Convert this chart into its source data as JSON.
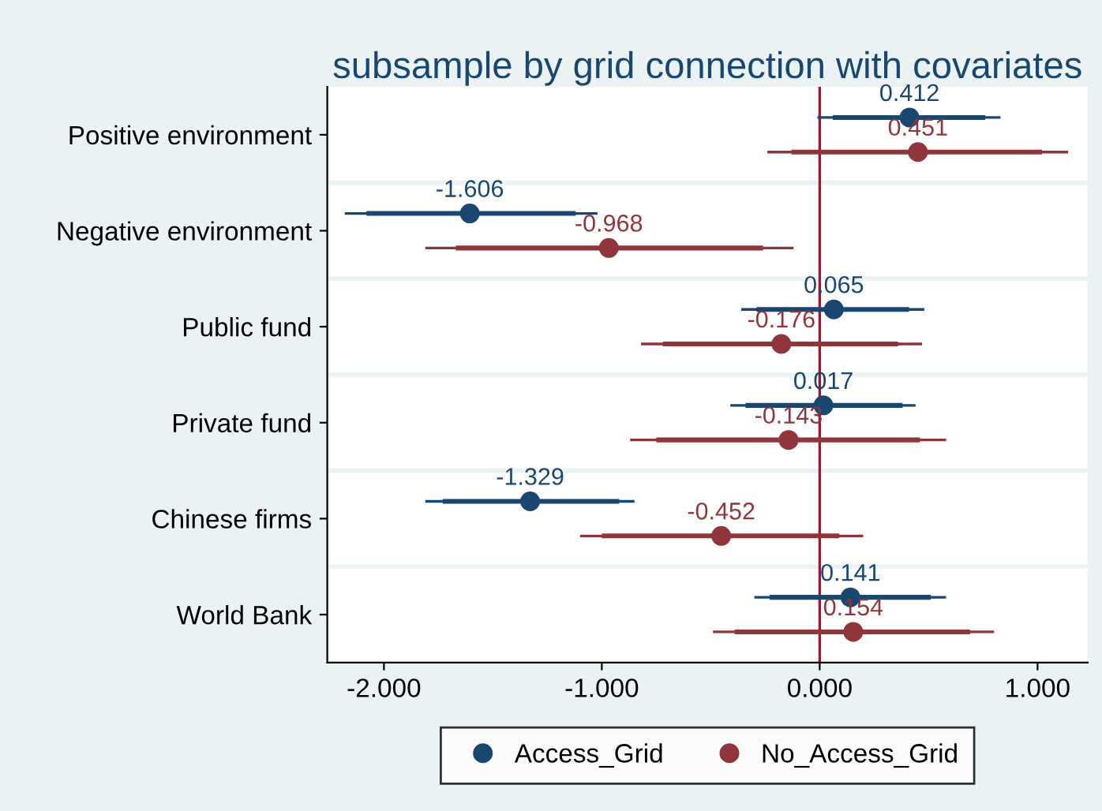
{
  "chart_data": {
    "type": "scatter",
    "title": "subsample by grid connection with covariates",
    "orientation": "horizontal",
    "categories": [
      "Positive environment",
      "Negative environment",
      "Public fund",
      "Private fund",
      "Chinese firms",
      "World Bank"
    ],
    "series": [
      {
        "name": "Access_Grid",
        "color": "#1a476f",
        "values": [
          0.412,
          -1.606,
          0.065,
          0.017,
          -1.329,
          0.141
        ],
        "value_labels": [
          "0.412",
          "-1.606",
          "0.065",
          "0.017",
          "-1.329",
          "0.141"
        ],
        "errors": [
          [
            -0.01,
            0.83
          ],
          [
            -2.18,
            -1.02
          ],
          [
            -0.36,
            0.48
          ],
          [
            -0.41,
            0.44
          ],
          [
            -1.81,
            -0.85
          ],
          [
            -0.3,
            0.58
          ]
        ]
      },
      {
        "type": "bar",
        "color": "#1a476f",
        "base": [
          0.06,
          -2.08,
          -0.29,
          -0.34,
          -1.73,
          -0.23
        ],
        "values": [
          0.7,
          0.96,
          0.7,
          0.72,
          0.81,
          0.74
        ]
      },
      {
        "name": "No_Access_Grid",
        "color": "#90353b",
        "values": [
          0.451,
          -0.968,
          -0.176,
          -0.143,
          -0.452,
          0.154
        ],
        "value_labels": [
          "0.451",
          "-0.968",
          "-0.176",
          "-0.143",
          "-0.452",
          "0.154"
        ],
        "errors": [
          [
            -0.24,
            1.14
          ],
          [
            -1.81,
            -0.12
          ],
          [
            -0.82,
            0.47
          ],
          [
            -0.87,
            0.58
          ],
          [
            -1.1,
            0.2
          ],
          [
            -0.49,
            0.8
          ]
        ]
      },
      {
        "type": "bar",
        "color": "#90353b",
        "base": [
          -0.13,
          -1.67,
          -0.72,
          -0.75,
          -1.0,
          -0.39
        ],
        "values": [
          1.15,
          1.41,
          1.08,
          1.21,
          1.09,
          1.08
        ]
      }
    ],
    "xlim": [
      -2.26,
      1.23
    ],
    "xticks": [
      {
        "value": -2,
        "label": "-2.000"
      },
      {
        "value": -1,
        "label": "-1.000"
      },
      {
        "value": 0,
        "label": "0.000"
      },
      {
        "value": 1,
        "label": "1.000"
      }
    ],
    "ref_lines": [
      {
        "axis": "x",
        "value": 0,
        "color": "#c10534"
      }
    ],
    "grid": "y",
    "legend": "bottom",
    "marker": "circle"
  }
}
